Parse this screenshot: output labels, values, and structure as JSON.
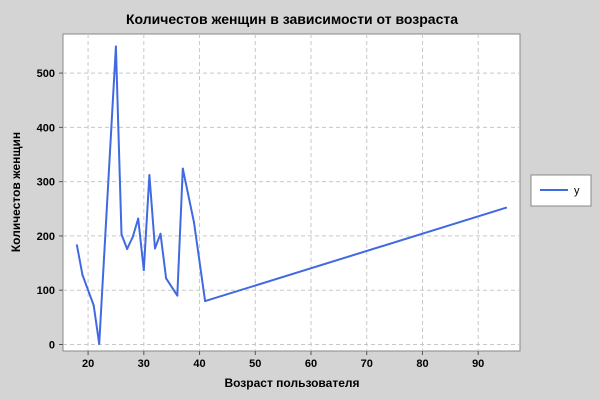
{
  "chart_data": {
    "type": "line",
    "title": "Количестов женщин в зависимости от возраста",
    "xlabel": "Возраст пользователя",
    "ylabel": "Количестов женщин",
    "xlim": [
      15.5,
      97.5
    ],
    "ylim": [
      -12,
      572
    ],
    "x_ticks": [
      20,
      30,
      40,
      50,
      60,
      70,
      80,
      90
    ],
    "y_ticks": [
      0,
      100,
      200,
      300,
      400,
      500
    ],
    "grid": true,
    "legend_position": "right",
    "series": [
      {
        "name": "y",
        "color": "#4169e1",
        "x": [
          18,
          19,
          21,
          22,
          25,
          26,
          27,
          28,
          29,
          30,
          31,
          32,
          33,
          34,
          36,
          37,
          39,
          41,
          95
        ],
        "y": [
          183,
          128,
          72,
          1,
          549,
          203,
          176,
          198,
          232,
          137,
          312,
          177,
          204,
          122,
          90,
          324,
          225,
          80,
          252
        ]
      }
    ]
  }
}
